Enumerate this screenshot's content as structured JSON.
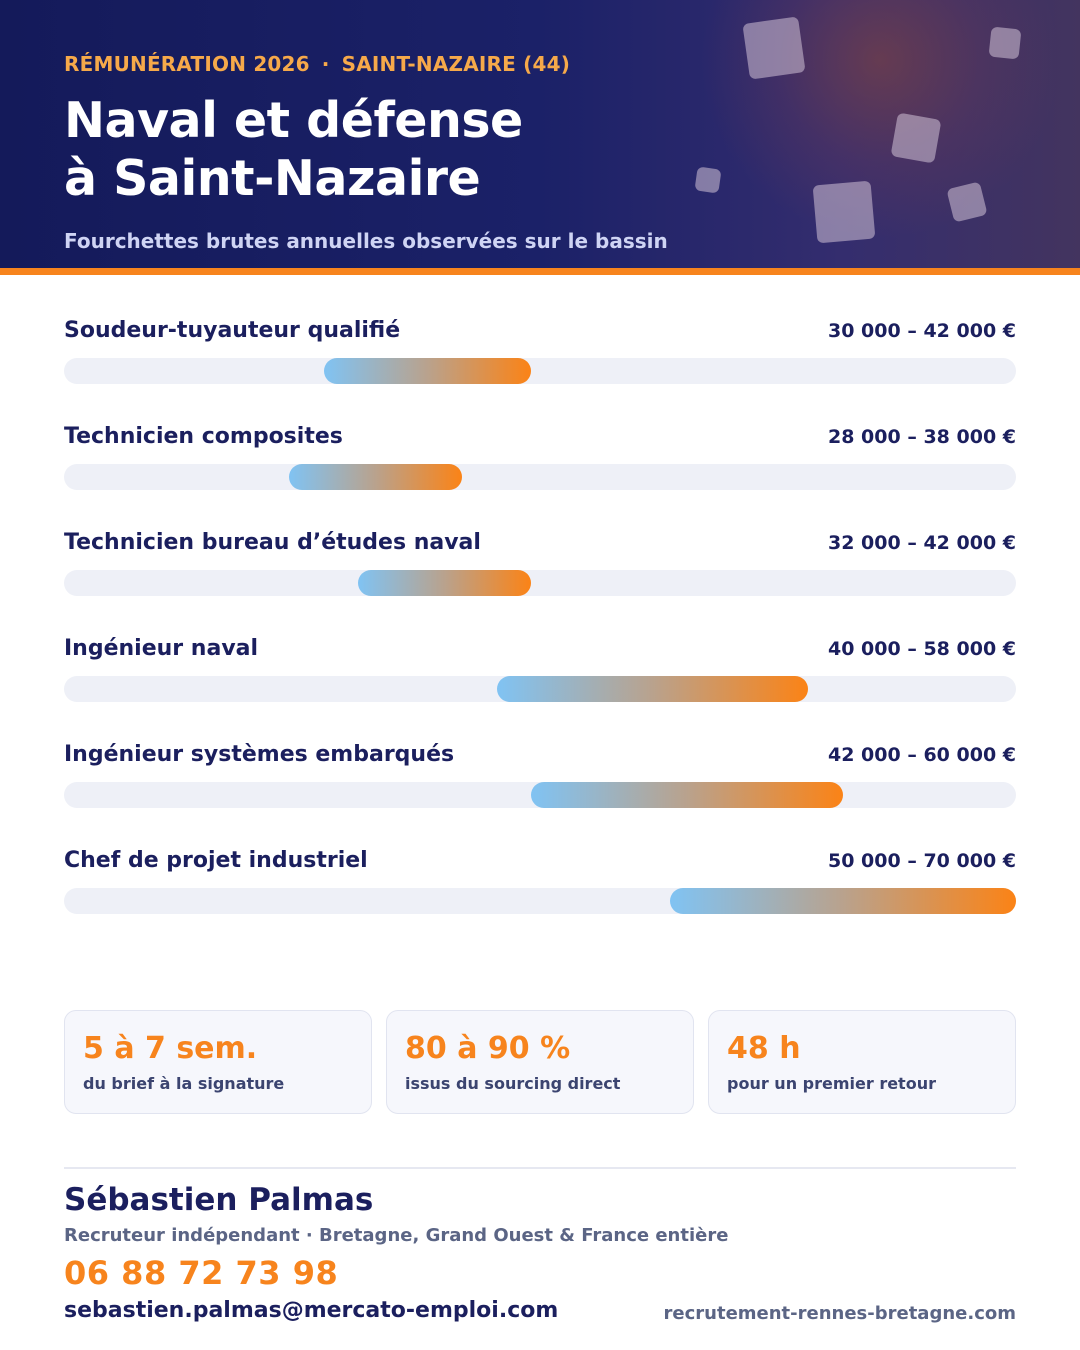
{
  "header": {
    "eyebrow_left": "RÉMUNÉRATION 2026",
    "eyebrow_sep": "·",
    "eyebrow_right": "SAINT-NAZAIRE (44)",
    "title_line1": "Naval et défense",
    "title_line2": "à Saint-Nazaire",
    "subtitle": "Fourchettes brutes annuelles observées sur le bassin"
  },
  "salaries": {
    "scale_min": 15000,
    "scale_max": 70000,
    "rows": [
      {
        "label": "Soudeur-tuyauteur qualifié",
        "range_text": "30 000 – 42 000 €",
        "min": 30000,
        "max": 42000
      },
      {
        "label": "Technicien composites",
        "range_text": "28 000 – 38 000 €",
        "min": 28000,
        "max": 38000
      },
      {
        "label": "Technicien bureau d’études naval",
        "range_text": "32 000 – 42 000 €",
        "min": 32000,
        "max": 42000
      },
      {
        "label": "Ingénieur naval",
        "range_text": "40 000 – 58 000 €",
        "min": 40000,
        "max": 58000
      },
      {
        "label": "Ingénieur systèmes embarqués",
        "range_text": "42 000 – 60 000 €",
        "min": 42000,
        "max": 60000
      },
      {
        "label": "Chef de projet industriel",
        "range_text": "50 000 – 70 000 €",
        "min": 50000,
        "max": 70000
      }
    ]
  },
  "stats": [
    {
      "value": "5 à 7 sem.",
      "label": "du brief à la signature"
    },
    {
      "value": "80 à 90 %",
      "label": "issus du sourcing direct"
    },
    {
      "value": "48 h",
      "label": "pour un premier retour"
    }
  ],
  "contact": {
    "name": "Sébastien Palmas",
    "role": "Recruteur indépendant · Bretagne, Grand Ouest & France entière",
    "phone": "06 88 72 73 98",
    "email": "sebastien.palmas@mercato-emploi.com",
    "website": "recrutement-rennes-bretagne.com"
  },
  "colors": {
    "navy": "#1b1f5e",
    "accent_orange": "#f7841d",
    "bar_start": "#80c3f3",
    "bar_end": "#fb8316",
    "track": "#eef0f7"
  }
}
